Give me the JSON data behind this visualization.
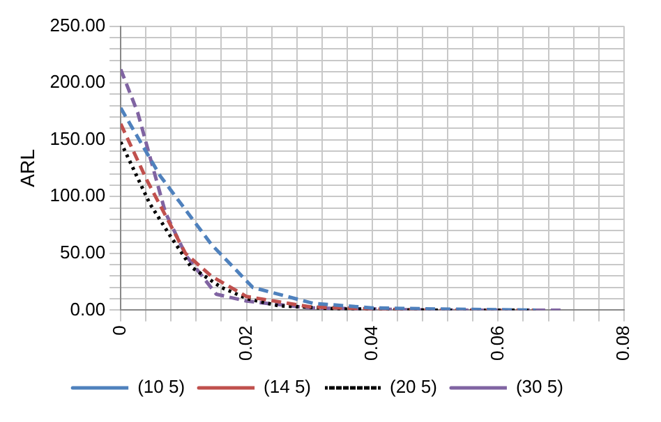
{
  "chart_data": {
    "type": "line",
    "ylabel": "ARL",
    "xlim": [
      0,
      0.08
    ],
    "ylim": [
      0,
      250
    ],
    "xticks": [
      0,
      {
        "value": 0.004,
        "label": null
      },
      {
        "value": 0.008,
        "label": null
      },
      {
        "value": 0.012,
        "label": null
      },
      {
        "value": 0.016,
        "label": null
      },
      0.02,
      {
        "value": 0.024,
        "label": null
      },
      {
        "value": 0.028,
        "label": null
      },
      {
        "value": 0.032,
        "label": null
      },
      {
        "value": 0.036,
        "label": null
      },
      0.04,
      {
        "value": 0.044,
        "label": null
      },
      {
        "value": 0.048,
        "label": null
      },
      {
        "value": 0.052,
        "label": null
      },
      {
        "value": 0.056,
        "label": null
      },
      0.06,
      {
        "value": 0.064,
        "label": null
      },
      {
        "value": 0.068,
        "label": null
      },
      {
        "value": 0.072,
        "label": null
      },
      {
        "value": 0.076,
        "label": null
      },
      0.08
    ],
    "yticks": [
      {
        "value": 0,
        "label": "0.00"
      },
      {
        "value": 10,
        "label": null
      },
      {
        "value": 20,
        "label": null
      },
      {
        "value": 30,
        "label": null
      },
      {
        "value": 40,
        "label": null
      },
      {
        "value": 50,
        "label": "50.00"
      },
      {
        "value": 60,
        "label": null
      },
      {
        "value": 70,
        "label": null
      },
      {
        "value": 80,
        "label": null
      },
      {
        "value": 90,
        "label": null
      },
      {
        "value": 100,
        "label": "100.00"
      },
      {
        "value": 110,
        "label": null
      },
      {
        "value": 120,
        "label": null
      },
      {
        "value": 130,
        "label": null
      },
      {
        "value": 140,
        "label": null
      },
      {
        "value": 150,
        "label": "150.00"
      },
      {
        "value": 160,
        "label": null
      },
      {
        "value": 170,
        "label": null
      },
      {
        "value": 180,
        "label": null
      },
      {
        "value": 190,
        "label": null
      },
      {
        "value": 200,
        "label": "200.00"
      },
      {
        "value": 210,
        "label": null
      },
      {
        "value": 220,
        "label": null
      },
      {
        "value": 230,
        "label": null
      },
      {
        "value": 240,
        "label": null
      },
      {
        "value": 250,
        "label": "250.00"
      }
    ],
    "grid": true,
    "legend": "bottom",
    "marker": "none",
    "series": [
      {
        "name": "(10 5)",
        "color": "#4f81bd",
        "line_style": "dashed",
        "x": [
          0,
          0.0063,
          0.0144,
          0.021,
          0.0306,
          0.04,
          0.05,
          0.066
        ],
        "values": [
          178,
          118,
          58,
          20,
          6,
          2,
          1,
          0
        ]
      },
      {
        "name": "(14 5)",
        "color": "#c0504d",
        "line_style": "dashed",
        "x": [
          0,
          0.0042,
          0.0103,
          0.0144,
          0.02,
          0.03,
          0.04,
          0.05,
          0.066
        ],
        "values": [
          164,
          114,
          50,
          30,
          12,
          3,
          1,
          0,
          0
        ]
      },
      {
        "name": "(20 5)",
        "color": "#000000",
        "line_style": "dotted",
        "x": [
          0,
          0.0046,
          0.0078,
          0.0112,
          0.016,
          0.0202,
          0.025,
          0.035,
          0.05,
          0.0665
        ],
        "values": [
          148,
          94,
          66,
          38,
          20,
          10,
          4,
          1,
          0,
          0
        ]
      },
      {
        "name": "(30 5)",
        "color": "#8064a2",
        "line_style": "dashed",
        "x": [
          0,
          0.0027,
          0.0045,
          0.0071,
          0.0104,
          0.0152,
          0.02,
          0.03,
          0.05,
          0.07
        ],
        "values": [
          212,
          174,
          138,
          86,
          48,
          14,
          8,
          2,
          0,
          0
        ]
      }
    ]
  }
}
